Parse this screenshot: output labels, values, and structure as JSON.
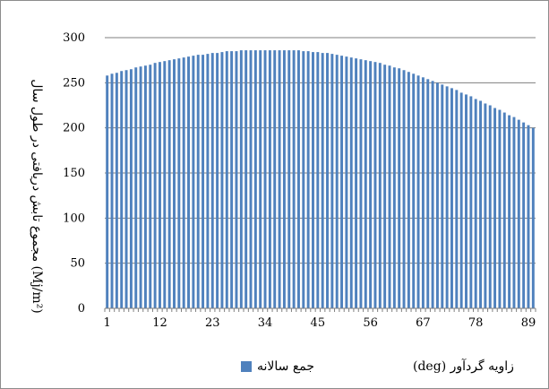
{
  "chart_data": {
    "type": "bar",
    "title": "",
    "xlabel": "زاویه گردآور (deg)",
    "ylabel": "مجموع تابش دریافتی در طول سال (Mj/m²)",
    "ylim": [
      0,
      300
    ],
    "yticks": [
      0,
      50,
      100,
      150,
      200,
      250,
      300
    ],
    "xticks": [
      1,
      12,
      23,
      34,
      45,
      56,
      67,
      78,
      89
    ],
    "grid": true,
    "legend_position": "bottom",
    "bar_color": "#4f81bd",
    "series": [
      {
        "name": "جمع سالانه",
        "x_start": 1,
        "values": [
          258,
          260,
          261,
          263,
          264,
          265,
          267,
          268,
          269,
          270,
          272,
          273,
          274,
          275,
          276,
          277,
          278,
          279,
          280,
          281,
          281,
          282,
          283,
          283,
          284,
          285,
          285,
          285,
          286,
          286,
          286,
          286,
          286,
          286,
          286,
          286,
          286,
          286,
          286,
          286,
          286,
          285,
          285,
          284,
          284,
          283,
          283,
          282,
          281,
          280,
          279,
          278,
          277,
          276,
          275,
          274,
          273,
          272,
          270,
          269,
          267,
          266,
          264,
          262,
          260,
          258,
          256,
          254,
          252,
          250,
          248,
          246,
          244,
          242,
          239,
          237,
          235,
          232,
          230,
          227,
          225,
          222,
          220,
          217,
          214,
          212,
          209,
          206,
          203,
          200
        ]
      }
    ]
  }
}
